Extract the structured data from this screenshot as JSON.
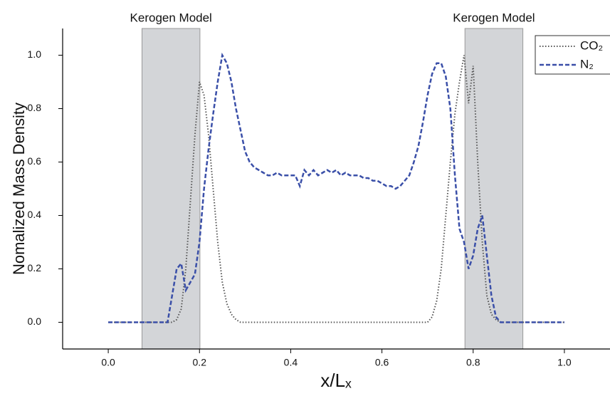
{
  "chart_data": {
    "type": "line",
    "x_label": "x/Lₓ",
    "y_label": "Nomalized Mass Density",
    "xlim": [
      -0.1,
      1.1
    ],
    "ylim": [
      -0.1,
      1.1
    ],
    "xticks": [
      {
        "value": 0,
        "label": "0.0"
      },
      {
        "value": 0.2,
        "label": "0.2"
      },
      {
        "value": 0.4,
        "label": "0.4"
      },
      {
        "value": 0.6,
        "label": "0.6"
      },
      {
        "value": 0.8,
        "label": "0.8"
      },
      {
        "value": 1,
        "label": "1.0"
      }
    ],
    "yticks": [
      {
        "value": 0,
        "label": "0.0"
      },
      {
        "value": 0.2,
        "label": "0.2"
      },
      {
        "value": 0.4,
        "label": "0.4"
      },
      {
        "value": 0.6,
        "label": "0.6"
      },
      {
        "value": 0.8,
        "label": "0.8"
      },
      {
        "value": 1,
        "label": "1.0"
      }
    ],
    "legend": "top-right",
    "shaded_regions": [
      {
        "label": "Kerogen Model",
        "range": [
          0.074,
          0.201
        ],
        "color": "#d3d5d8"
      },
      {
        "label": "Kerogen Model",
        "range": [
          0.782,
          0.909
        ],
        "color": "#d3d5d8"
      }
    ],
    "x": [
      0,
      0.01,
      0.02,
      0.03,
      0.04,
      0.05,
      0.06,
      0.07,
      0.08,
      0.09,
      0.1,
      0.11,
      0.12,
      0.13,
      0.14,
      0.15,
      0.16,
      0.17,
      0.18,
      0.19,
      0.2,
      0.21,
      0.22,
      0.23,
      0.24,
      0.25,
      0.26,
      0.27,
      0.28,
      0.29,
      0.3,
      0.31,
      0.32,
      0.33,
      0.34,
      0.35,
      0.36,
      0.37,
      0.38,
      0.39,
      0.4,
      0.41,
      0.42,
      0.43,
      0.44,
      0.45,
      0.46,
      0.47,
      0.48,
      0.49,
      0.5,
      0.51,
      0.52,
      0.53,
      0.54,
      0.55,
      0.56,
      0.57,
      0.58,
      0.59,
      0.6,
      0.61,
      0.62,
      0.63,
      0.64,
      0.65,
      0.66,
      0.67,
      0.68,
      0.69,
      0.7,
      0.71,
      0.72,
      0.73,
      0.74,
      0.75,
      0.76,
      0.77,
      0.78,
      0.79,
      0.8,
      0.81,
      0.82,
      0.83,
      0.84,
      0.85,
      0.86,
      0.87,
      0.88,
      0.89,
      0.9,
      0.91,
      0.92,
      0.93,
      0.94,
      0.95,
      0.96,
      0.97,
      0.98,
      0.99,
      1
    ],
    "series": [
      {
        "name": "CO₂",
        "color": "#555555",
        "style": "dotted",
        "values": [
          0,
          0,
          0,
          0,
          0,
          0,
          0,
          0,
          0,
          0,
          0,
          0,
          0,
          0,
          0,
          0.01,
          0.05,
          0.2,
          0.45,
          0.7,
          0.9,
          0.85,
          0.7,
          0.5,
          0.3,
          0.15,
          0.07,
          0.03,
          0.01,
          0,
          0,
          0,
          0,
          0,
          0,
          0,
          0,
          0,
          0,
          0,
          0,
          0,
          0,
          0,
          0,
          0,
          0,
          0,
          0,
          0,
          0,
          0,
          0,
          0,
          0,
          0,
          0,
          0,
          0,
          0,
          0,
          0,
          0,
          0,
          0,
          0,
          0,
          0,
          0,
          0,
          0,
          0.02,
          0.08,
          0.2,
          0.4,
          0.6,
          0.78,
          0.9,
          1.0,
          0.82,
          0.96,
          0.6,
          0.3,
          0.1,
          0.03,
          0.01,
          0,
          0,
          0,
          0,
          0,
          0,
          0,
          0,
          0,
          0,
          0,
          0,
          0,
          0,
          0
        ]
      },
      {
        "name": "N₂",
        "color": "#3a4fa8",
        "style": "dashed",
        "values": [
          0,
          0,
          0,
          0,
          0,
          0,
          0,
          0,
          0,
          0,
          0,
          0,
          0,
          0,
          0.1,
          0.2,
          0.22,
          0.12,
          0.15,
          0.18,
          0.3,
          0.5,
          0.65,
          0.78,
          0.9,
          1.0,
          0.97,
          0.9,
          0.8,
          0.72,
          0.64,
          0.6,
          0.58,
          0.57,
          0.56,
          0.55,
          0.55,
          0.56,
          0.55,
          0.55,
          0.55,
          0.55,
          0.51,
          0.57,
          0.55,
          0.57,
          0.55,
          0.56,
          0.57,
          0.56,
          0.57,
          0.55,
          0.56,
          0.55,
          0.55,
          0.55,
          0.54,
          0.54,
          0.53,
          0.53,
          0.52,
          0.51,
          0.51,
          0.5,
          0.51,
          0.53,
          0.55,
          0.6,
          0.66,
          0.75,
          0.85,
          0.93,
          0.97,
          0.97,
          0.92,
          0.8,
          0.55,
          0.35,
          0.3,
          0.2,
          0.25,
          0.35,
          0.4,
          0.25,
          0.1,
          0.02,
          0,
          0,
          0,
          0,
          0,
          0,
          0,
          0,
          0,
          0,
          0,
          0,
          0,
          0,
          0
        ]
      }
    ]
  }
}
